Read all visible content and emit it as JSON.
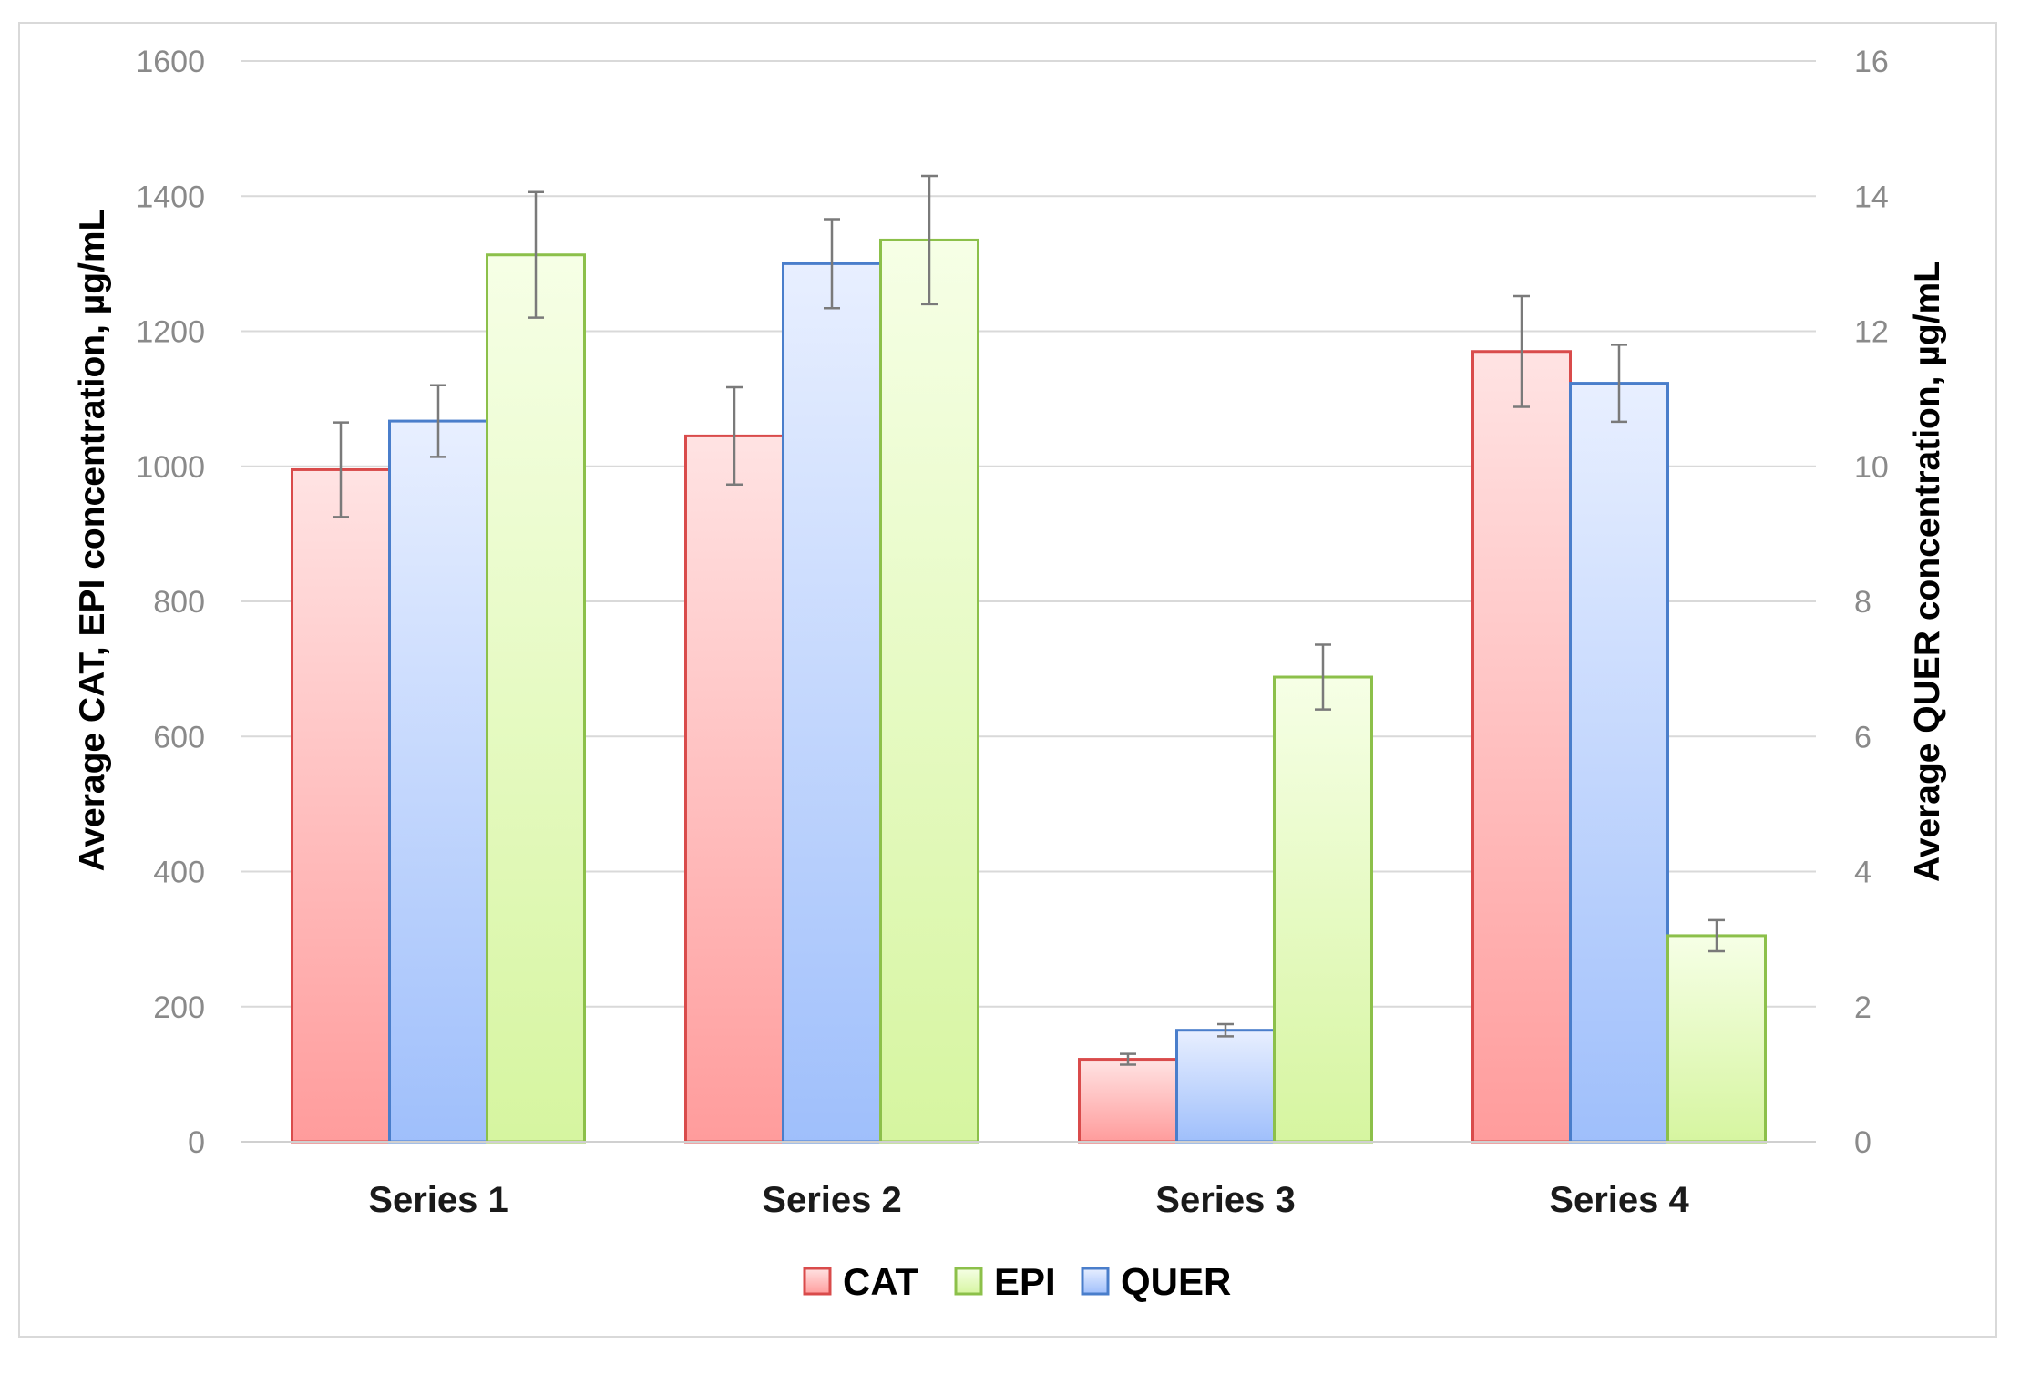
{
  "chart_data": {
    "type": "bar",
    "categories": [
      "Series 1",
      "Series 2",
      "Series 3",
      "Series 4"
    ],
    "series": [
      {
        "name": "CAT",
        "axis": "left",
        "values": [
          995,
          1045,
          122,
          1170
        ],
        "errors": [
          70,
          72,
          8,
          82
        ],
        "color": "#d94b4b",
        "fill_top": "#ffe3e3",
        "fill_bottom": "#ff9c9c"
      },
      {
        "name": "QUER",
        "axis": "right",
        "values": [
          10.67,
          13.0,
          1.65,
          11.23
        ],
        "errors": [
          0.53,
          0.66,
          0.09,
          0.57
        ],
        "color": "#4a7ecb",
        "fill_top": "#e8efff",
        "fill_bottom": "#9fbffb"
      },
      {
        "name": "EPI",
        "axis": "left",
        "values": [
          1313,
          1335,
          688,
          305
        ],
        "errors": [
          93,
          95,
          48,
          23
        ],
        "color": "#8cc04a",
        "fill_top": "#f6ffe6",
        "fill_bottom": "#d6f5a0"
      }
    ],
    "legend_order": [
      "CAT",
      "EPI",
      "QUER"
    ],
    "ylabel": "Average CAT, EPI concentration, µg/mL",
    "y2label": "Average QUER concentration, µg/mL",
    "ylim": [
      0,
      1600
    ],
    "y2lim": [
      0,
      16
    ],
    "yticks": [
      0,
      200,
      400,
      600,
      800,
      1000,
      1200,
      1400,
      1600
    ],
    "y2ticks": [
      0,
      2,
      4,
      6,
      8,
      10,
      12,
      14,
      16
    ],
    "grid": true,
    "legend_position": "bottom"
  }
}
